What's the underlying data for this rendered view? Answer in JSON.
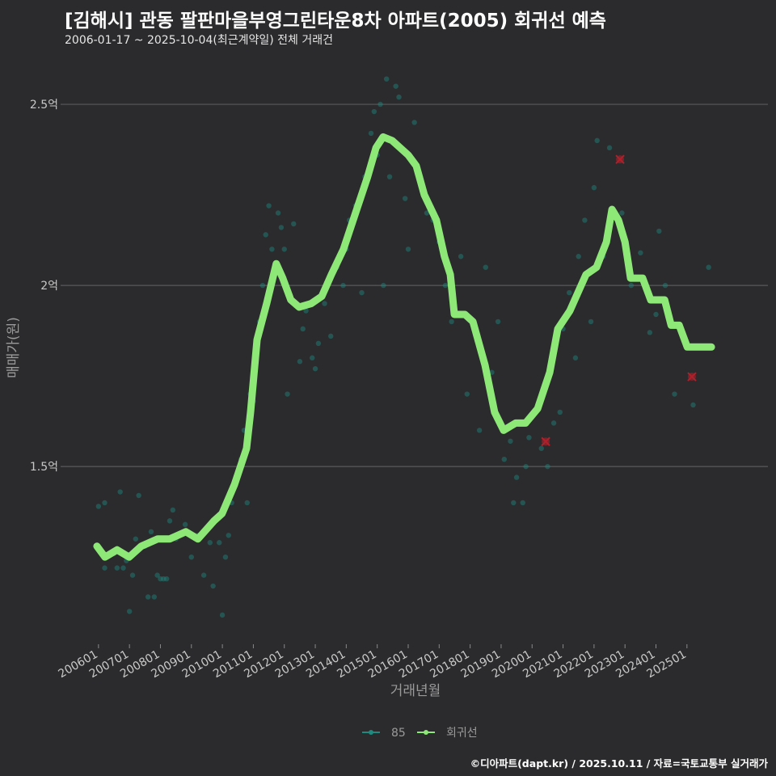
{
  "title": "[김해시] 관동 팔판마을부영그린타운8차 아파트(2005) 회귀선 예측",
  "subtitle": "2006-01-17 ~ 2025-10-04(최근계약일) 전체 거래건",
  "credit": "©디아파트(dapt.kr) / 2025.10.11 / 자료=국토교통부 실거래가",
  "colors": {
    "background": "#2b2b2d",
    "grid": "#5a5a5a",
    "scatter": "#1f8a80",
    "regression": "#8ee878",
    "outlier": "#b0202a"
  },
  "chart_data": {
    "type": "scatter",
    "xlabel": "거래년월",
    "ylabel": "매매가(원)",
    "xlim": [
      2005.43,
      2026.44
    ],
    "ylim": [
      1.025,
      2.576
    ],
    "grid": true,
    "legend_position": "bottom",
    "x_ticks": [
      {
        "value": 2006,
        "label": "200601"
      },
      {
        "value": 2007,
        "label": "200701"
      },
      {
        "value": 2008,
        "label": "200801"
      },
      {
        "value": 2009,
        "label": "200901"
      },
      {
        "value": 2010,
        "label": "201001"
      },
      {
        "value": 2011,
        "label": "201101"
      },
      {
        "value": 2012,
        "label": "201201"
      },
      {
        "value": 2013,
        "label": "201301"
      },
      {
        "value": 2014,
        "label": "201401"
      },
      {
        "value": 2015,
        "label": "201501"
      },
      {
        "value": 2016,
        "label": "201601"
      },
      {
        "value": 2017,
        "label": "201701"
      },
      {
        "value": 2018,
        "label": "201801"
      },
      {
        "value": 2019,
        "label": "201901"
      },
      {
        "value": 2020,
        "label": "202001"
      },
      {
        "value": 2021,
        "label": "202101"
      },
      {
        "value": 2022,
        "label": "202201"
      },
      {
        "value": 2023,
        "label": "202301"
      },
      {
        "value": 2024,
        "label": "202401"
      },
      {
        "value": 2025,
        "label": "202501"
      }
    ],
    "y_ticks": [
      {
        "value": 1.5,
        "label": "1.5억"
      },
      {
        "value": 2.0,
        "label": "2억"
      },
      {
        "value": 2.5,
        "label": "2.5억"
      }
    ],
    "legend": [
      {
        "name": "85",
        "kind": "scatter"
      },
      {
        "name": "회귀선",
        "kind": "line"
      }
    ],
    "series": [
      {
        "name": "85",
        "type": "scatter",
        "points": [
          [
            2006.0,
            1.39
          ],
          [
            2006.2,
            1.4
          ],
          [
            2006.2,
            1.22
          ],
          [
            2006.5,
            1.26
          ],
          [
            2006.6,
            1.22
          ],
          [
            2006.7,
            1.43
          ],
          [
            2006.8,
            1.22
          ],
          [
            2006.9,
            1.24
          ],
          [
            2007.0,
            1.1
          ],
          [
            2007.1,
            1.2
          ],
          [
            2007.2,
            1.3
          ],
          [
            2007.3,
            1.42
          ],
          [
            2007.5,
            1.28
          ],
          [
            2007.6,
            1.14
          ],
          [
            2007.7,
            1.32
          ],
          [
            2007.8,
            1.14
          ],
          [
            2007.9,
            1.2
          ],
          [
            2008.0,
            1.19
          ],
          [
            2008.1,
            1.19
          ],
          [
            2008.2,
            1.19
          ],
          [
            2008.3,
            1.35
          ],
          [
            2008.4,
            1.38
          ],
          [
            2008.5,
            1.3
          ],
          [
            2008.8,
            1.34
          ],
          [
            2009.0,
            1.25
          ],
          [
            2009.2,
            1.31
          ],
          [
            2009.4,
            1.2
          ],
          [
            2009.6,
            1.29
          ],
          [
            2009.7,
            1.17
          ],
          [
            2009.9,
            1.29
          ],
          [
            2010.0,
            1.09
          ],
          [
            2010.1,
            1.25
          ],
          [
            2010.2,
            1.31
          ],
          [
            2010.3,
            1.4
          ],
          [
            2010.5,
            1.48
          ],
          [
            2010.6,
            1.52
          ],
          [
            2010.7,
            1.6
          ],
          [
            2010.8,
            1.4
          ],
          [
            2010.9,
            1.7
          ],
          [
            2011.0,
            1.68
          ],
          [
            2011.2,
            1.9
          ],
          [
            2011.3,
            2.0
          ],
          [
            2011.4,
            2.14
          ],
          [
            2011.5,
            2.22
          ],
          [
            2011.6,
            2.1
          ],
          [
            2011.8,
            2.2
          ],
          [
            2011.9,
            2.16
          ],
          [
            2012.0,
            2.1
          ],
          [
            2012.1,
            1.7
          ],
          [
            2012.3,
            2.17
          ],
          [
            2012.5,
            1.79
          ],
          [
            2012.6,
            1.88
          ],
          [
            2012.7,
            1.93
          ],
          [
            2012.9,
            1.8
          ],
          [
            2013.0,
            1.77
          ],
          [
            2013.1,
            1.84
          ],
          [
            2013.3,
            1.95
          ],
          [
            2013.5,
            1.86
          ],
          [
            2013.7,
            2.05
          ],
          [
            2013.9,
            2.0
          ],
          [
            2014.0,
            2.1
          ],
          [
            2014.1,
            2.18
          ],
          [
            2014.3,
            2.22
          ],
          [
            2014.5,
            1.98
          ],
          [
            2014.6,
            2.3
          ],
          [
            2014.8,
            2.42
          ],
          [
            2014.9,
            2.48
          ],
          [
            2015.0,
            2.36
          ],
          [
            2015.1,
            2.5
          ],
          [
            2015.2,
            2.0
          ],
          [
            2015.3,
            2.57
          ],
          [
            2015.4,
            2.3
          ],
          [
            2015.6,
            2.55
          ],
          [
            2015.7,
            2.52
          ],
          [
            2015.9,
            2.24
          ],
          [
            2016.0,
            2.1
          ],
          [
            2016.2,
            2.45
          ],
          [
            2016.4,
            2.3
          ],
          [
            2016.6,
            2.2
          ],
          [
            2016.8,
            2.18
          ],
          [
            2017.0,
            2.12
          ],
          [
            2017.2,
            2.0
          ],
          [
            2017.4,
            1.9
          ],
          [
            2017.7,
            2.08
          ],
          [
            2017.9,
            1.7
          ],
          [
            2018.1,
            1.9
          ],
          [
            2018.3,
            1.6
          ],
          [
            2018.5,
            2.05
          ],
          [
            2018.7,
            1.76
          ],
          [
            2018.9,
            1.9
          ],
          [
            2019.1,
            1.52
          ],
          [
            2019.3,
            1.57
          ],
          [
            2019.4,
            1.4
          ],
          [
            2019.5,
            1.47
          ],
          [
            2019.7,
            1.4
          ],
          [
            2019.8,
            1.5
          ],
          [
            2019.9,
            1.58
          ],
          [
            2020.1,
            1.65
          ],
          [
            2020.3,
            1.55
          ],
          [
            2020.5,
            1.5
          ],
          [
            2020.7,
            1.62
          ],
          [
            2020.9,
            1.65
          ],
          [
            2021.0,
            1.88
          ],
          [
            2021.2,
            1.98
          ],
          [
            2021.4,
            1.8
          ],
          [
            2021.5,
            2.08
          ],
          [
            2021.7,
            2.18
          ],
          [
            2021.9,
            1.9
          ],
          [
            2022.0,
            2.27
          ],
          [
            2022.1,
            2.4
          ],
          [
            2022.3,
            2.08
          ],
          [
            2022.5,
            2.38
          ],
          [
            2022.9,
            2.2
          ],
          [
            2023.2,
            2.0
          ],
          [
            2023.5,
            2.09
          ],
          [
            2023.8,
            1.87
          ],
          [
            2024.0,
            1.92
          ],
          [
            2024.1,
            2.15
          ],
          [
            2024.3,
            2.0
          ],
          [
            2024.6,
            1.7
          ],
          [
            2024.9,
            1.85
          ],
          [
            2025.2,
            1.67
          ],
          [
            2025.7,
            2.05
          ]
        ]
      },
      {
        "name": "회귀선",
        "type": "line",
        "points": [
          [
            2005.95,
            1.28
          ],
          [
            2006.21,
            1.25
          ],
          [
            2006.6,
            1.27
          ],
          [
            2006.99,
            1.25
          ],
          [
            2007.38,
            1.28
          ],
          [
            2007.91,
            1.3
          ],
          [
            2008.3,
            1.3
          ],
          [
            2008.82,
            1.32
          ],
          [
            2009.21,
            1.3
          ],
          [
            2009.73,
            1.35
          ],
          [
            2009.99,
            1.37
          ],
          [
            2010.39,
            1.45
          ],
          [
            2010.78,
            1.55
          ],
          [
            2010.91,
            1.65
          ],
          [
            2011.12,
            1.85
          ],
          [
            2011.43,
            1.95
          ],
          [
            2011.74,
            2.06
          ],
          [
            2011.95,
            2.02
          ],
          [
            2012.21,
            1.96
          ],
          [
            2012.48,
            1.94
          ],
          [
            2012.87,
            1.95
          ],
          [
            2013.21,
            1.97
          ],
          [
            2013.52,
            2.03
          ],
          [
            2013.91,
            2.1
          ],
          [
            2014.3,
            2.2
          ],
          [
            2014.69,
            2.3
          ],
          [
            2014.96,
            2.38
          ],
          [
            2015.19,
            2.41
          ],
          [
            2015.48,
            2.4
          ],
          [
            2015.74,
            2.38
          ],
          [
            2016.0,
            2.36
          ],
          [
            2016.26,
            2.33
          ],
          [
            2016.52,
            2.25
          ],
          [
            2016.91,
            2.18
          ],
          [
            2017.17,
            2.08
          ],
          [
            2017.36,
            2.03
          ],
          [
            2017.49,
            1.92
          ],
          [
            2017.83,
            1.92
          ],
          [
            2018.09,
            1.9
          ],
          [
            2018.48,
            1.78
          ],
          [
            2018.79,
            1.65
          ],
          [
            2019.08,
            1.6
          ],
          [
            2019.47,
            1.62
          ],
          [
            2019.79,
            1.62
          ],
          [
            2020.18,
            1.66
          ],
          [
            2020.57,
            1.76
          ],
          [
            2020.83,
            1.88
          ],
          [
            2021.22,
            1.93
          ],
          [
            2021.48,
            1.98
          ],
          [
            2021.74,
            2.03
          ],
          [
            2022.08,
            2.05
          ],
          [
            2022.4,
            2.12
          ],
          [
            2022.58,
            2.21
          ],
          [
            2022.79,
            2.18
          ],
          [
            2023.0,
            2.12
          ],
          [
            2023.18,
            2.02
          ],
          [
            2023.57,
            2.02
          ],
          [
            2023.83,
            1.96
          ],
          [
            2024.28,
            1.96
          ],
          [
            2024.49,
            1.89
          ],
          [
            2024.75,
            1.89
          ],
          [
            2025.01,
            1.83
          ],
          [
            2025.79,
            1.83
          ]
        ]
      },
      {
        "name": "outliers",
        "type": "marker",
        "points": [
          [
            2020.44,
            1.569
          ],
          [
            2022.84,
            2.348
          ],
          [
            2025.16,
            1.748
          ]
        ]
      }
    ]
  }
}
